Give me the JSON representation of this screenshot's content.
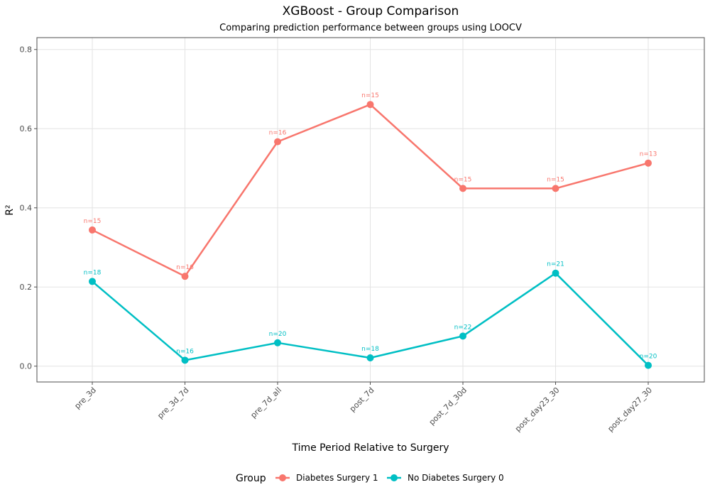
{
  "chart_data": {
    "type": "line",
    "title": "XGBoost - Group Comparison",
    "subtitle": "Comparing prediction performance between groups using LOOCV",
    "xlabel": "Time Period Relative to Surgery",
    "ylabel": "R²",
    "categories": [
      "pre_3d",
      "pre_3d_7d",
      "pre_7d_all",
      "post_7d",
      "post_7d_30d",
      "post_day23_30",
      "post_day27_30"
    ],
    "ylim": [
      -0.04,
      0.83
    ],
    "yticks": [
      0.0,
      0.2,
      0.4,
      0.6,
      0.8
    ],
    "ytick_labels": [
      "0.0",
      "0.2",
      "0.4",
      "0.6",
      "0.8"
    ],
    "grid": true,
    "legend_position": "bottom",
    "legend_title": "Group",
    "series": [
      {
        "name": "Diabetes Surgery 1",
        "color": "#F8766D",
        "values": [
          0.344,
          0.227,
          0.567,
          0.661,
          0.449,
          0.449,
          0.513
        ],
        "labels": [
          "n=15",
          "n=16",
          "n=16",
          "n=15",
          "n=15",
          "n=15",
          "n=13"
        ]
      },
      {
        "name": "No Diabetes Surgery 0",
        "color": "#00BFC4",
        "values": [
          0.214,
          0.015,
          0.059,
          0.021,
          0.076,
          0.235,
          0.002
        ],
        "labels": [
          "n=18",
          "n=16",
          "n=20",
          "n=18",
          "n=22",
          "n=21",
          "n=20"
        ]
      }
    ]
  }
}
